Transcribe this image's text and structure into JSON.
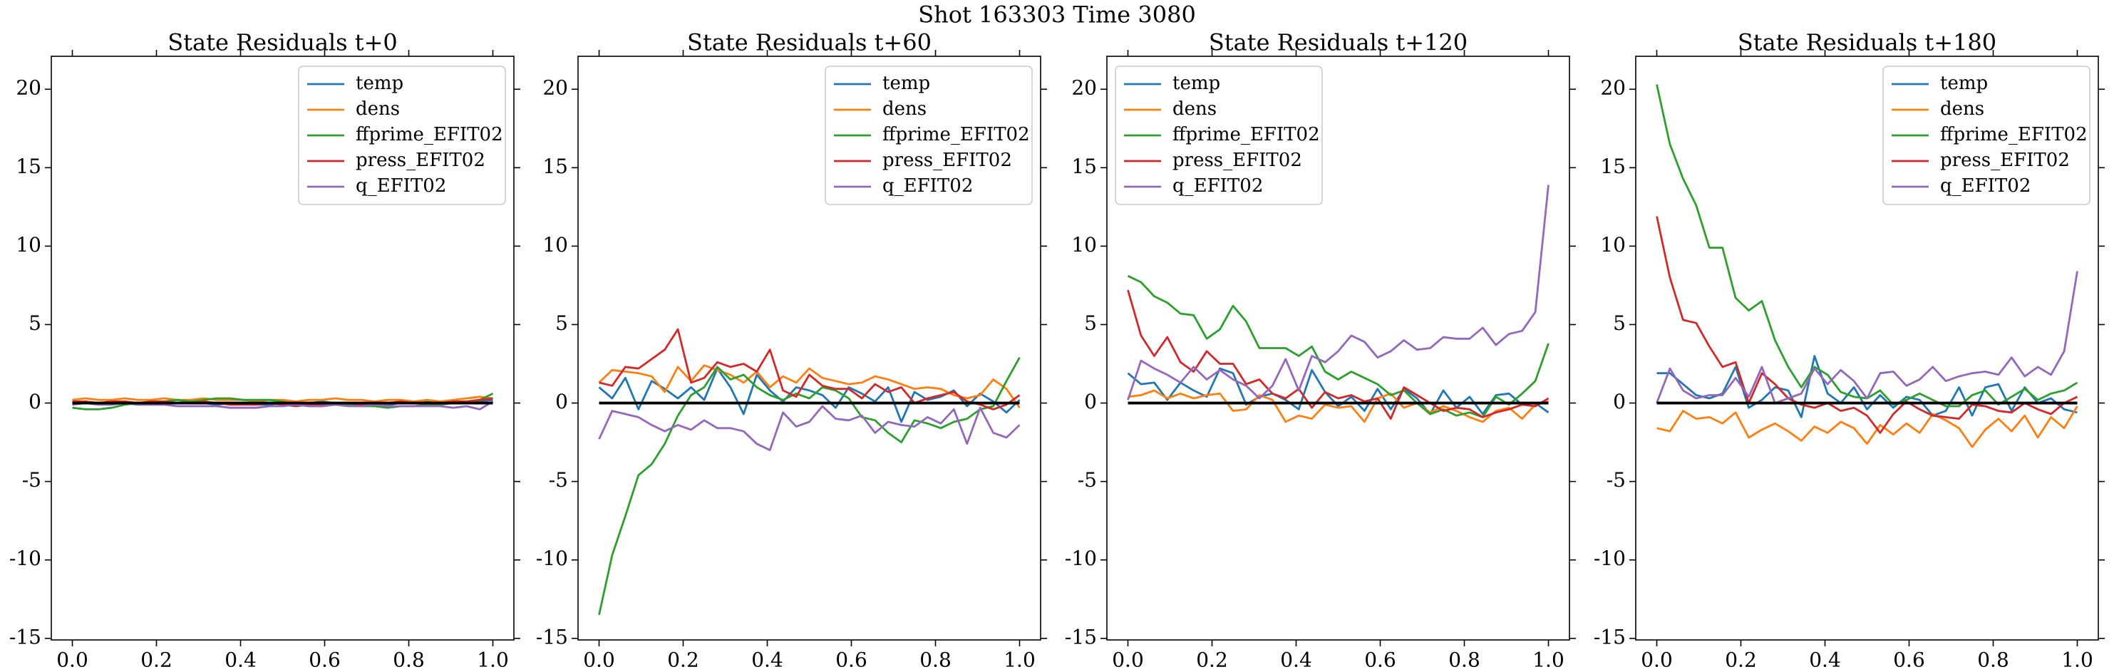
{
  "title": "Shot 163303   Time 3080",
  "chart_data": [
    {
      "type": "line",
      "title": "State Residuals t+0",
      "legend": "upper right",
      "hline": 0,
      "x": [
        0,
        0.03125,
        0.0625,
        0.09375,
        0.125,
        0.15625,
        0.1875,
        0.21875,
        0.25,
        0.28125,
        0.3125,
        0.34375,
        0.375,
        0.40625,
        0.4375,
        0.46875,
        0.5,
        0.53125,
        0.5625,
        0.59375,
        0.625,
        0.65625,
        0.6875,
        0.71875,
        0.75,
        0.78125,
        0.8125,
        0.84375,
        0.875,
        0.90625,
        0.9375,
        0.96875,
        1
      ],
      "xlim": [
        -0.05,
        1.05
      ],
      "ylim": [
        -15.1,
        22.1
      ],
      "xticks": [
        {
          "value": 0,
          "label": "0.0"
        },
        {
          "value": 0.2,
          "label": "0.2"
        },
        {
          "value": 0.4,
          "label": "0.4"
        },
        {
          "value": 0.6,
          "label": "0.6"
        },
        {
          "value": 0.8,
          "label": "0.8"
        },
        {
          "value": 1,
          "label": "1.0"
        }
      ],
      "yticks": [
        -15,
        -10,
        -5,
        0,
        5,
        10,
        15,
        20
      ],
      "series": [
        {
          "name": "temp",
          "color": "#1f77b4",
          "values": [
            0.1,
            0.1,
            0.0,
            0.1,
            0.0,
            -0.1,
            0.0,
            0.1,
            0.0,
            0.1,
            0.0,
            -0.1,
            0.0,
            0.0,
            -0.1,
            -0.1,
            0.0,
            -0.1,
            0.0,
            0.1,
            0.0,
            -0.1,
            0.0,
            0.0,
            -0.1,
            0.0,
            0.0,
            0.1,
            0.0,
            0.1,
            0.0,
            0.1,
            0.2
          ]
        },
        {
          "name": "dens",
          "color": "#ff7f0e",
          "values": [
            0.2,
            0.3,
            0.2,
            0.2,
            0.3,
            0.2,
            0.2,
            0.3,
            0.2,
            0.2,
            0.3,
            0.2,
            0.2,
            0.2,
            0.1,
            0.2,
            0.2,
            0.1,
            0.2,
            0.2,
            0.3,
            0.2,
            0.2,
            0.1,
            0.2,
            0.2,
            0.1,
            0.2,
            0.1,
            0.2,
            0.3,
            0.4,
            0.3
          ]
        },
        {
          "name": "ffprime_EFIT02",
          "color": "#2ca02c",
          "values": [
            -0.3,
            -0.4,
            -0.4,
            -0.3,
            -0.1,
            0.0,
            0.1,
            0.1,
            0.2,
            0.1,
            0.2,
            0.3,
            0.3,
            0.2,
            0.2,
            0.2,
            0.1,
            -0.1,
            -0.2,
            -0.2,
            -0.1,
            -0.1,
            -0.2,
            -0.2,
            -0.3,
            -0.2,
            -0.2,
            -0.1,
            -0.1,
            0.0,
            0.1,
            0.2,
            0.6
          ]
        },
        {
          "name": "press_EFIT02",
          "color": "#d62728",
          "values": [
            0.1,
            0.1,
            0.0,
            0.1,
            0.1,
            0.0,
            0.1,
            0.1,
            0.0,
            0.0,
            0.1,
            0.0,
            -0.1,
            -0.1,
            -0.1,
            0.0,
            -0.1,
            -0.2,
            -0.1,
            -0.1,
            0.0,
            0.0,
            -0.1,
            0.0,
            0.0,
            0.1,
            0.0,
            0.0,
            0.0,
            0.1,
            0.1,
            0.2,
            0.3
          ]
        },
        {
          "name": "q_EFIT02",
          "color": "#9467bd",
          "values": [
            -0.1,
            0.0,
            -0.1,
            -0.1,
            0.0,
            -0.1,
            -0.1,
            -0.1,
            -0.2,
            -0.2,
            -0.2,
            -0.2,
            -0.3,
            -0.3,
            -0.3,
            -0.2,
            -0.2,
            -0.1,
            -0.2,
            -0.2,
            -0.1,
            -0.2,
            -0.2,
            -0.1,
            -0.2,
            -0.2,
            -0.2,
            -0.2,
            -0.2,
            -0.3,
            -0.2,
            -0.4,
            0.1
          ]
        }
      ]
    },
    {
      "type": "line",
      "title": "State Residuals t+60",
      "legend": "upper right",
      "hline": 0,
      "x": [
        0,
        0.03125,
        0.0625,
        0.09375,
        0.125,
        0.15625,
        0.1875,
        0.21875,
        0.25,
        0.28125,
        0.3125,
        0.34375,
        0.375,
        0.40625,
        0.4375,
        0.46875,
        0.5,
        0.53125,
        0.5625,
        0.59375,
        0.625,
        0.65625,
        0.6875,
        0.71875,
        0.75,
        0.78125,
        0.8125,
        0.84375,
        0.875,
        0.90625,
        0.9375,
        0.96875,
        1
      ],
      "xlim": [
        -0.05,
        1.05
      ],
      "ylim": [
        -15.1,
        22.1
      ],
      "xticks": [
        {
          "value": 0,
          "label": "0.0"
        },
        {
          "value": 0.2,
          "label": "0.2"
        },
        {
          "value": 0.4,
          "label": "0.4"
        },
        {
          "value": 0.6,
          "label": "0.6"
        },
        {
          "value": 0.8,
          "label": "0.8"
        },
        {
          "value": 1,
          "label": "1.0"
        }
      ],
      "yticks": [
        -15,
        -10,
        -5,
        0,
        5,
        10,
        15,
        20
      ],
      "series": [
        {
          "name": "temp",
          "color": "#1f77b4",
          "values": [
            1.0,
            0.3,
            1.6,
            -0.4,
            1.4,
            0.9,
            0.3,
            1.0,
            0.2,
            2.2,
            1.0,
            -0.7,
            1.8,
            0.8,
            0.1,
            1.0,
            0.8,
            0.5,
            -0.3,
            1.0,
            0.6,
            0.1,
            1.0,
            -1.2,
            0.7,
            0.2,
            0.4,
            0.8,
            -0.2,
            0.6,
            0.1,
            -0.6,
            0.2
          ]
        },
        {
          "name": "dens",
          "color": "#ff7f0e",
          "values": [
            1.3,
            2.1,
            2.0,
            1.9,
            1.7,
            0.7,
            2.3,
            1.4,
            2.4,
            2.1,
            1.8,
            1.3,
            2.0,
            1.0,
            1.7,
            1.3,
            2.2,
            1.6,
            1.4,
            1.2,
            1.3,
            1.7,
            1.5,
            1.2,
            0.9,
            1.0,
            0.9,
            0.5,
            0.3,
            0.5,
            1.5,
            0.9,
            -0.3
          ]
        },
        {
          "name": "ffprime_EFIT02",
          "color": "#2ca02c",
          "values": [
            -13.5,
            -9.7,
            -7.2,
            -4.6,
            -3.9,
            -2.6,
            -0.8,
            0.5,
            1.0,
            2.3,
            1.5,
            1.8,
            1.0,
            0.5,
            0.2,
            0.6,
            0.3,
            1.0,
            0.8,
            0.3,
            -0.9,
            -1.1,
            -1.9,
            -2.5,
            -1.1,
            -1.3,
            -1.6,
            -1.2,
            -1.0,
            -0.4,
            -0.2,
            1.4,
            2.9
          ]
        },
        {
          "name": "press_EFIT02",
          "color": "#d62728",
          "values": [
            1.3,
            1.1,
            2.3,
            2.2,
            2.8,
            3.4,
            4.7,
            1.3,
            1.6,
            2.6,
            2.3,
            2.5,
            2.0,
            3.4,
            0.8,
            0.4,
            1.8,
            1.1,
            0.9,
            0.9,
            0.3,
            1.2,
            0.7,
            1.0,
            0.0,
            0.3,
            0.5,
            0.7,
            0.1,
            -0.1,
            -0.4,
            -0.1,
            0.5
          ]
        },
        {
          "name": "q_EFIT02",
          "color": "#9467bd",
          "values": [
            -2.3,
            -0.5,
            -0.7,
            -0.9,
            -1.4,
            -1.8,
            -1.4,
            -1.7,
            -1.1,
            -1.6,
            -1.6,
            -1.8,
            -2.6,
            -3.0,
            -0.6,
            -1.5,
            -1.2,
            -0.2,
            -1.0,
            -1.1,
            -0.8,
            -1.9,
            -1.2,
            -1.4,
            -1.5,
            -0.9,
            -1.3,
            -0.4,
            -2.6,
            -0.3,
            -1.9,
            -2.2,
            -1.4
          ]
        }
      ]
    },
    {
      "type": "line",
      "title": "State Residuals t+120",
      "legend": "upper left",
      "hline": 0,
      "x": [
        0,
        0.03125,
        0.0625,
        0.09375,
        0.125,
        0.15625,
        0.1875,
        0.21875,
        0.25,
        0.28125,
        0.3125,
        0.34375,
        0.375,
        0.40625,
        0.4375,
        0.46875,
        0.5,
        0.53125,
        0.5625,
        0.59375,
        0.625,
        0.65625,
        0.6875,
        0.71875,
        0.75,
        0.78125,
        0.8125,
        0.84375,
        0.875,
        0.90625,
        0.9375,
        0.96875,
        1
      ],
      "xlim": [
        -0.05,
        1.05
      ],
      "ylim": [
        -15.1,
        22.1
      ],
      "xticks": [
        {
          "value": 0,
          "label": "0.0"
        },
        {
          "value": 0.2,
          "label": "0.2"
        },
        {
          "value": 0.4,
          "label": "0.4"
        },
        {
          "value": 0.6,
          "label": "0.6"
        },
        {
          "value": 0.8,
          "label": "0.8"
        },
        {
          "value": 1,
          "label": "1.0"
        }
      ],
      "yticks": [
        -15,
        -10,
        -5,
        0,
        5,
        10,
        15,
        20
      ],
      "series": [
        {
          "name": "temp",
          "color": "#1f77b4",
          "values": [
            1.9,
            1.2,
            1.3,
            0.2,
            1.3,
            0.8,
            0.4,
            2.2,
            1.9,
            -0.1,
            0.4,
            0.6,
            0.2,
            -0.4,
            2.1,
            0.7,
            -0.2,
            0.4,
            -0.5,
            0.9,
            -0.4,
            0.9,
            0.3,
            -0.7,
            0.8,
            -0.3,
            0.4,
            -0.7,
            0.5,
            0.6,
            -0.1,
            0.0,
            -0.6
          ]
        },
        {
          "name": "dens",
          "color": "#ff7f0e",
          "values": [
            0.4,
            0.5,
            0.8,
            0.3,
            0.6,
            0.3,
            0.5,
            0.6,
            -0.5,
            -0.4,
            0.5,
            0.2,
            -1.2,
            -0.8,
            -1.0,
            -0.1,
            -0.3,
            -0.2,
            -1.2,
            0.3,
            0.6,
            -0.3,
            0.0,
            -0.6,
            -0.2,
            -0.5,
            -0.9,
            -1.2,
            -0.5,
            -0.3,
            -1.0,
            -0.1,
            0.1
          ]
        },
        {
          "name": "ffprime_EFIT02",
          "color": "#2ca02c",
          "values": [
            8.1,
            7.7,
            6.8,
            6.4,
            5.7,
            5.6,
            4.1,
            4.7,
            6.2,
            5.2,
            3.5,
            3.5,
            3.5,
            3.0,
            3.6,
            2.0,
            1.5,
            2.0,
            1.6,
            1.2,
            0.5,
            0.8,
            0.0,
            -0.7,
            -0.4,
            -0.8,
            -0.6,
            -0.9,
            0.4,
            -0.1,
            0.6,
            1.4,
            3.8
          ]
        },
        {
          "name": "press_EFIT02",
          "color": "#d62728",
          "values": [
            7.2,
            4.3,
            3.0,
            4.2,
            2.6,
            2.0,
            3.3,
            2.5,
            2.5,
            1.2,
            1.5,
            0.6,
            0.3,
            0.9,
            -0.3,
            0.7,
            0.3,
            0.5,
            0.1,
            0.3,
            -1.0,
            1.0,
            0.5,
            0.0,
            -0.5,
            -0.3,
            -0.4,
            -0.9,
            -0.6,
            -0.4,
            -0.1,
            -0.2,
            0.3
          ]
        },
        {
          "name": "q_EFIT02",
          "color": "#9467bd",
          "values": [
            0.2,
            2.7,
            2.2,
            1.8,
            1.3,
            2.3,
            1.5,
            2.1,
            1.5,
            1.1,
            0.3,
            1.1,
            2.8,
            0.8,
            3.0,
            2.6,
            3.3,
            4.3,
            3.9,
            2.9,
            3.3,
            4.0,
            3.4,
            3.5,
            4.2,
            4.1,
            4.1,
            4.8,
            3.7,
            4.4,
            4.6,
            5.8,
            13.9
          ]
        }
      ]
    },
    {
      "type": "line",
      "title": "State Residuals t+180",
      "legend": "upper right",
      "hline": 0,
      "x": [
        0,
        0.03125,
        0.0625,
        0.09375,
        0.125,
        0.15625,
        0.1875,
        0.21875,
        0.25,
        0.28125,
        0.3125,
        0.34375,
        0.375,
        0.40625,
        0.4375,
        0.46875,
        0.5,
        0.53125,
        0.5625,
        0.59375,
        0.625,
        0.65625,
        0.6875,
        0.71875,
        0.75,
        0.78125,
        0.8125,
        0.84375,
        0.875,
        0.90625,
        0.9375,
        0.96875,
        1
      ],
      "xlim": [
        -0.05,
        1.05
      ],
      "ylim": [
        -15.1,
        22.1
      ],
      "xticks": [
        {
          "value": 0,
          "label": "0.0"
        },
        {
          "value": 0.2,
          "label": "0.2"
        },
        {
          "value": 0.4,
          "label": "0.4"
        },
        {
          "value": 0.6,
          "label": "0.6"
        },
        {
          "value": 0.8,
          "label": "0.8"
        },
        {
          "value": 1,
          "label": "1.0"
        }
      ],
      "yticks": [
        -15,
        -10,
        -5,
        0,
        5,
        10,
        15,
        20
      ],
      "series": [
        {
          "name": "temp",
          "color": "#1f77b4",
          "values": [
            1.9,
            1.9,
            1.2,
            0.5,
            0.3,
            0.6,
            2.3,
            -0.3,
            0.2,
            1.0,
            0.8,
            -0.9,
            3.0,
            0.6,
            0.0,
            1.0,
            -0.4,
            0.5,
            -0.3,
            0.4,
            0.2,
            -0.8,
            -0.5,
            1.0,
            -0.8,
            1.0,
            1.2,
            -0.5,
            1.0,
            0.0,
            0.3,
            -0.4,
            -0.6
          ]
        },
        {
          "name": "dens",
          "color": "#ff7f0e",
          "values": [
            -1.6,
            -1.8,
            -0.5,
            -1.0,
            -0.9,
            -1.3,
            -0.6,
            -2.2,
            -1.7,
            -1.3,
            -1.8,
            -2.4,
            -1.5,
            -1.9,
            -1.2,
            -1.6,
            -2.6,
            -1.4,
            -2.0,
            -1.3,
            -1.9,
            -0.7,
            -1.1,
            -1.6,
            -2.8,
            -1.7,
            -1.0,
            -1.8,
            -0.8,
            -2.2,
            -0.9,
            -1.6,
            -0.2
          ]
        },
        {
          "name": "ffprime_EFIT02",
          "color": "#2ca02c",
          "values": [
            20.3,
            16.5,
            14.3,
            12.6,
            9.9,
            9.9,
            6.7,
            5.9,
            6.5,
            4.0,
            2.3,
            1.0,
            2.3,
            1.8,
            0.7,
            0.4,
            0.3,
            0.8,
            -0.1,
            0.2,
            0.6,
            0.2,
            -0.2,
            -0.2,
            0.5,
            0.8,
            -0.1,
            0.4,
            0.9,
            0.2,
            0.6,
            0.8,
            1.3
          ]
        },
        {
          "name": "press_EFIT02",
          "color": "#d62728",
          "values": [
            11.9,
            8.0,
            5.3,
            5.1,
            3.6,
            2.3,
            2.6,
            0.0,
            1.9,
            1.2,
            0.3,
            -0.1,
            -0.3,
            0.0,
            -0.5,
            -0.3,
            -0.8,
            -1.9,
            -0.7,
            0.1,
            -0.4,
            -0.8,
            -0.9,
            -1.0,
            -0.1,
            -0.2,
            -0.5,
            -0.6,
            0.0,
            -0.4,
            -0.7,
            0.0,
            0.4
          ]
        },
        {
          "name": "q_EFIT02",
          "color": "#9467bd",
          "values": [
            0.0,
            2.2,
            0.8,
            0.3,
            0.5,
            0.5,
            1.6,
            0.4,
            2.3,
            0.0,
            0.3,
            0.6,
            2.2,
            1.2,
            2.1,
            1.4,
            0.3,
            1.9,
            2.0,
            1.1,
            1.5,
            2.3,
            1.4,
            1.7,
            1.9,
            2.0,
            1.8,
            2.9,
            1.7,
            2.3,
            1.8,
            3.3,
            8.4
          ]
        }
      ]
    }
  ]
}
